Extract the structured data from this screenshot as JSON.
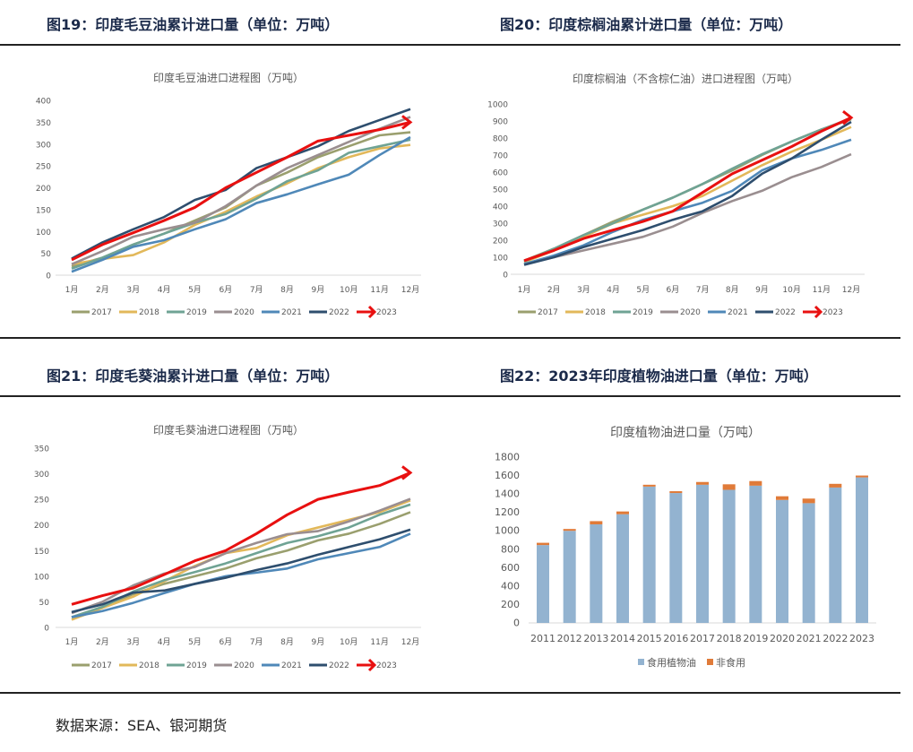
{
  "headings": {
    "fig19": "图19：印度毛豆油累计进口量（单位：万吨）",
    "fig20": "图20：印度棕榈油累计进口量（单位：万吨）",
    "fig21": "图21：印度毛葵油累计进口量（单位：万吨）",
    "fig22": "图22：2023年印度植物油进口量（单位：万吨）"
  },
  "source": "数据来源：SEA、银河期货",
  "colors": {
    "2017": "#9a9f6e",
    "2018": "#e2b85a",
    "2019": "#6fa394",
    "2020": "#9a8e90",
    "2021": "#4f88b8",
    "2022": "#2e4e6e",
    "2023": "#e81010",
    "edible": "#93b3d0",
    "nonedible": "#e07b39"
  },
  "chart_data": [
    {
      "type": "line",
      "title": "印度毛豆油进口进程图（万吨）",
      "ylim": [
        0,
        400
      ],
      "yticks": [
        0,
        50,
        100,
        150,
        200,
        250,
        300,
        350,
        400
      ],
      "categories": [
        "1月",
        "2月",
        "3月",
        "4月",
        "5月",
        "6月",
        "7月",
        "8月",
        "9月",
        "10月",
        "11月",
        "12月"
      ],
      "legend": "bottom",
      "grid": false,
      "series": [
        {
          "name": "2017",
          "values": [
            20,
            40,
            70,
            95,
            125,
            155,
            205,
            235,
            270,
            295,
            320,
            327
          ]
        },
        {
          "name": "2018",
          "values": [
            25,
            37,
            46,
            75,
            115,
            145,
            180,
            210,
            245,
            270,
            290,
            298
          ]
        },
        {
          "name": "2019",
          "values": [
            15,
            40,
            70,
            95,
            120,
            140,
            175,
            215,
            240,
            280,
            295,
            310
          ]
        },
        {
          "name": "2020",
          "values": [
            25,
            55,
            88,
            105,
            120,
            158,
            205,
            245,
            275,
            305,
            335,
            362
          ]
        },
        {
          "name": "2021",
          "values": [
            8,
            35,
            65,
            80,
            105,
            128,
            165,
            185,
            208,
            230,
            275,
            316
          ]
        },
        {
          "name": "2022",
          "values": [
            38,
            75,
            105,
            133,
            172,
            195,
            245,
            270,
            295,
            330,
            355,
            380
          ]
        },
        {
          "name": "2023",
          "values": [
            35,
            70,
            97,
            125,
            155,
            200,
            235,
            270,
            307,
            320,
            333,
            350
          ]
        }
      ]
    },
    {
      "type": "line",
      "title": "印度棕榈油（不含棕仁油）进口进程图（万吨）",
      "ylim": [
        0,
        1000
      ],
      "yticks": [
        0,
        100,
        200,
        300,
        400,
        500,
        600,
        700,
        800,
        900,
        1000
      ],
      "categories": [
        "1月",
        "2月",
        "3月",
        "4月",
        "5月",
        "6月",
        "7月",
        "8月",
        "9月",
        "10月",
        "11月",
        "12月"
      ],
      "legend": "bottom",
      "grid": false,
      "series": [
        {
          "name": "2017",
          "values": [
            80,
            150,
            230,
            310,
            380,
            450,
            530,
            610,
            700,
            780,
            850,
            910
          ]
        },
        {
          "name": "2018",
          "values": [
            70,
            140,
            220,
            300,
            350,
            400,
            460,
            550,
            640,
            720,
            790,
            865
          ]
        },
        {
          "name": "2019",
          "values": [
            75,
            150,
            230,
            300,
            380,
            450,
            530,
            620,
            705,
            780,
            850,
            915
          ]
        },
        {
          "name": "2020",
          "values": [
            60,
            100,
            140,
            180,
            220,
            280,
            360,
            430,
            490,
            570,
            630,
            705
          ]
        },
        {
          "name": "2021",
          "values": [
            60,
            110,
            170,
            250,
            320,
            370,
            420,
            490,
            610,
            680,
            730,
            790
          ]
        },
        {
          "name": "2022",
          "values": [
            55,
            100,
            160,
            210,
            260,
            320,
            370,
            460,
            590,
            680,
            790,
            895
          ]
        },
        {
          "name": "2023",
          "values": [
            80,
            140,
            210,
            260,
            310,
            370,
            480,
            590,
            670,
            750,
            840,
            920
          ]
        }
      ]
    },
    {
      "type": "line",
      "title": "印度毛葵油进口进程图（万吨）",
      "ylim": [
        0,
        350
      ],
      "yticks": [
        0,
        50,
        100,
        150,
        200,
        250,
        300,
        350
      ],
      "categories": [
        "1月",
        "2月",
        "3月",
        "4月",
        "5月",
        "6月",
        "7月",
        "8月",
        "9月",
        "10月",
        "11月",
        "12月"
      ],
      "legend": "bottom",
      "grid": false,
      "series": [
        {
          "name": "2017",
          "values": [
            20,
            40,
            65,
            85,
            100,
            115,
            135,
            150,
            170,
            183,
            202,
            225
          ]
        },
        {
          "name": "2018",
          "values": [
            15,
            38,
            60,
            90,
            120,
            145,
            155,
            180,
            195,
            210,
            225,
            248
          ]
        },
        {
          "name": "2019",
          "values": [
            20,
            40,
            70,
            92,
            108,
            125,
            145,
            165,
            178,
            195,
            220,
            240
          ]
        },
        {
          "name": "2020",
          "values": [
            28,
            50,
            82,
            105,
            118,
            145,
            165,
            182,
            188,
            207,
            228,
            251
          ]
        },
        {
          "name": "2021",
          "values": [
            20,
            32,
            48,
            67,
            85,
            100,
            107,
            115,
            133,
            145,
            157,
            183
          ]
        },
        {
          "name": "2022",
          "values": [
            30,
            45,
            68,
            72,
            85,
            97,
            112,
            125,
            142,
            157,
            172,
            191
          ]
        },
        {
          "name": "2023",
          "values": [
            45,
            62,
            77,
            103,
            130,
            150,
            183,
            220,
            250,
            264,
            277,
            302
          ]
        }
      ]
    },
    {
      "type": "bar",
      "stacked": true,
      "title": "印度植物油进口量（万吨）",
      "ylim": [
        0,
        1800
      ],
      "yticks": [
        0,
        200,
        400,
        600,
        800,
        1000,
        1200,
        1400,
        1600,
        1800
      ],
      "categories": [
        "2011",
        "2012",
        "2013",
        "2014",
        "2015",
        "2016",
        "2017",
        "2018",
        "2019",
        "2020",
        "2021",
        "2022",
        "2023"
      ],
      "legend": "bottom",
      "grid": false,
      "series": [
        {
          "name": "食用植物油",
          "values": [
            845,
            1000,
            1070,
            1180,
            1480,
            1410,
            1500,
            1445,
            1490,
            1335,
            1300,
            1470,
            1580
          ]
        },
        {
          "name": "非食用",
          "values": [
            25,
            20,
            35,
            30,
            20,
            20,
            30,
            60,
            50,
            40,
            50,
            40,
            20
          ]
        }
      ]
    }
  ]
}
